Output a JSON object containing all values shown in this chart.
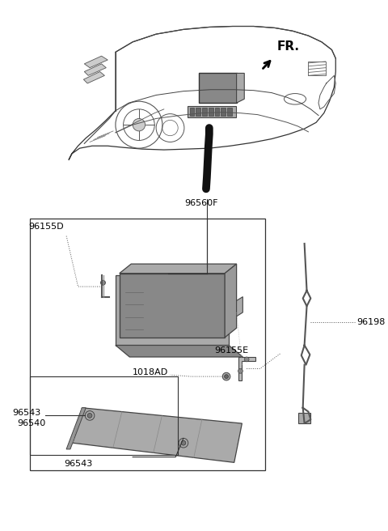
{
  "background_color": "#ffffff",
  "text_color": "#000000",
  "line_color": "#000000",
  "labels": {
    "FR": "FR.",
    "96560F": "96560F",
    "96155D": "96155D",
    "96155E": "96155E",
    "96198": "96198",
    "96543_left": "96543",
    "96543_bottom": "96543",
    "96540": "96540",
    "1018AD": "1018AD"
  },
  "fig_w": 4.8,
  "fig_h": 6.56,
  "dpi": 100
}
